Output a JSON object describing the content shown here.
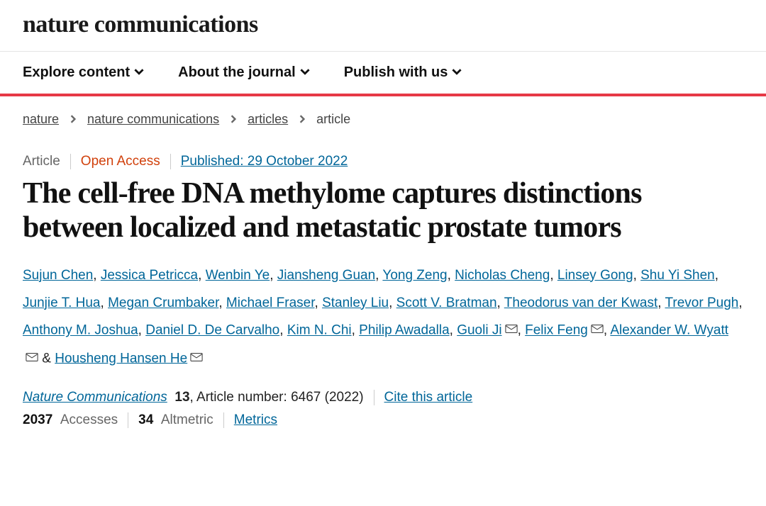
{
  "journal_name": "nature communications",
  "nav": [
    {
      "label": "Explore content"
    },
    {
      "label": "About the journal"
    },
    {
      "label": "Publish with us"
    }
  ],
  "breadcrumb": {
    "items": [
      "nature",
      "nature communications",
      "articles"
    ],
    "current": "article"
  },
  "meta": {
    "type": "Article",
    "access": "Open Access",
    "published": "Published: 29 October 2022"
  },
  "title": "The cell-free DNA methylome captures distinctions between localized and metastatic prostate tumors",
  "authors": [
    {
      "name": "Sujun Chen"
    },
    {
      "name": "Jessica Petricca"
    },
    {
      "name": "Wenbin Ye"
    },
    {
      "name": "Jiansheng Guan"
    },
    {
      "name": "Yong Zeng"
    },
    {
      "name": "Nicholas Cheng"
    },
    {
      "name": "Linsey Gong"
    },
    {
      "name": "Shu Yi Shen"
    },
    {
      "name": "Junjie T. Hua"
    },
    {
      "name": "Megan Crumbaker"
    },
    {
      "name": "Michael Fraser"
    },
    {
      "name": "Stanley Liu"
    },
    {
      "name": "Scott V. Bratman"
    },
    {
      "name": "Theodorus van der Kwast"
    },
    {
      "name": "Trevor Pugh"
    },
    {
      "name": "Anthony M. Joshua"
    },
    {
      "name": "Daniel D. De Carvalho"
    },
    {
      "name": "Kim N. Chi"
    },
    {
      "name": "Philip Awadalla"
    },
    {
      "name": "Guoli Ji",
      "corresponding": true
    },
    {
      "name": "Felix Feng",
      "corresponding": true
    },
    {
      "name": "Alexander W. Wyatt",
      "corresponding": true
    },
    {
      "name": "Housheng Hansen He",
      "corresponding": true
    }
  ],
  "journal_line": {
    "journal": "Nature Communications",
    "volume": "13",
    "article_info": ", Article number: 6467 (2022)",
    "cite": "Cite this article"
  },
  "metrics": {
    "accesses_num": "2037",
    "accesses_label": "Accesses",
    "altmetric_num": "34",
    "altmetric_label": "Altmetric",
    "link": "Metrics"
  },
  "colors": {
    "accent_red": "#e63946",
    "open_access": "#d1410c",
    "link": "#006699",
    "text": "#222222",
    "muted": "#666666"
  }
}
